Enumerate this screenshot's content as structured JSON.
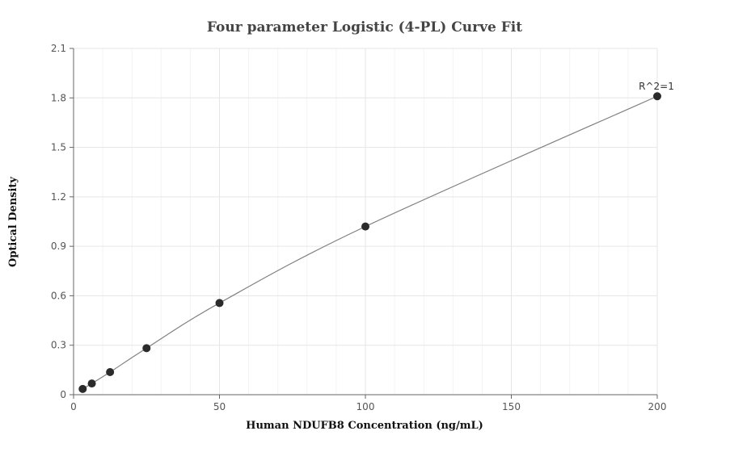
{
  "chart_data": {
    "type": "scatter",
    "title": "Four parameter Logistic (4-PL) Curve Fit",
    "xlabel": "Human NDUFB8 Concentration (ng/mL)",
    "ylabel": "Optical Density",
    "xlim": [
      0,
      200
    ],
    "ylim": [
      0,
      2.1
    ],
    "x_ticks": [
      "0",
      "50",
      "100",
      "150",
      "200"
    ],
    "y_ticks": [
      "0",
      "0.3",
      "0.6",
      "0.9",
      "1.2",
      "1.5",
      "1.8",
      "2.1"
    ],
    "grid": true,
    "series": [
      {
        "x": [
          3.125,
          6.25,
          12.5,
          25,
          50,
          100,
          200
        ],
        "y": [
          0.035,
          0.068,
          0.137,
          0.282,
          0.556,
          1.02,
          1.81
        ]
      }
    ],
    "annotation": "R^2=1"
  }
}
